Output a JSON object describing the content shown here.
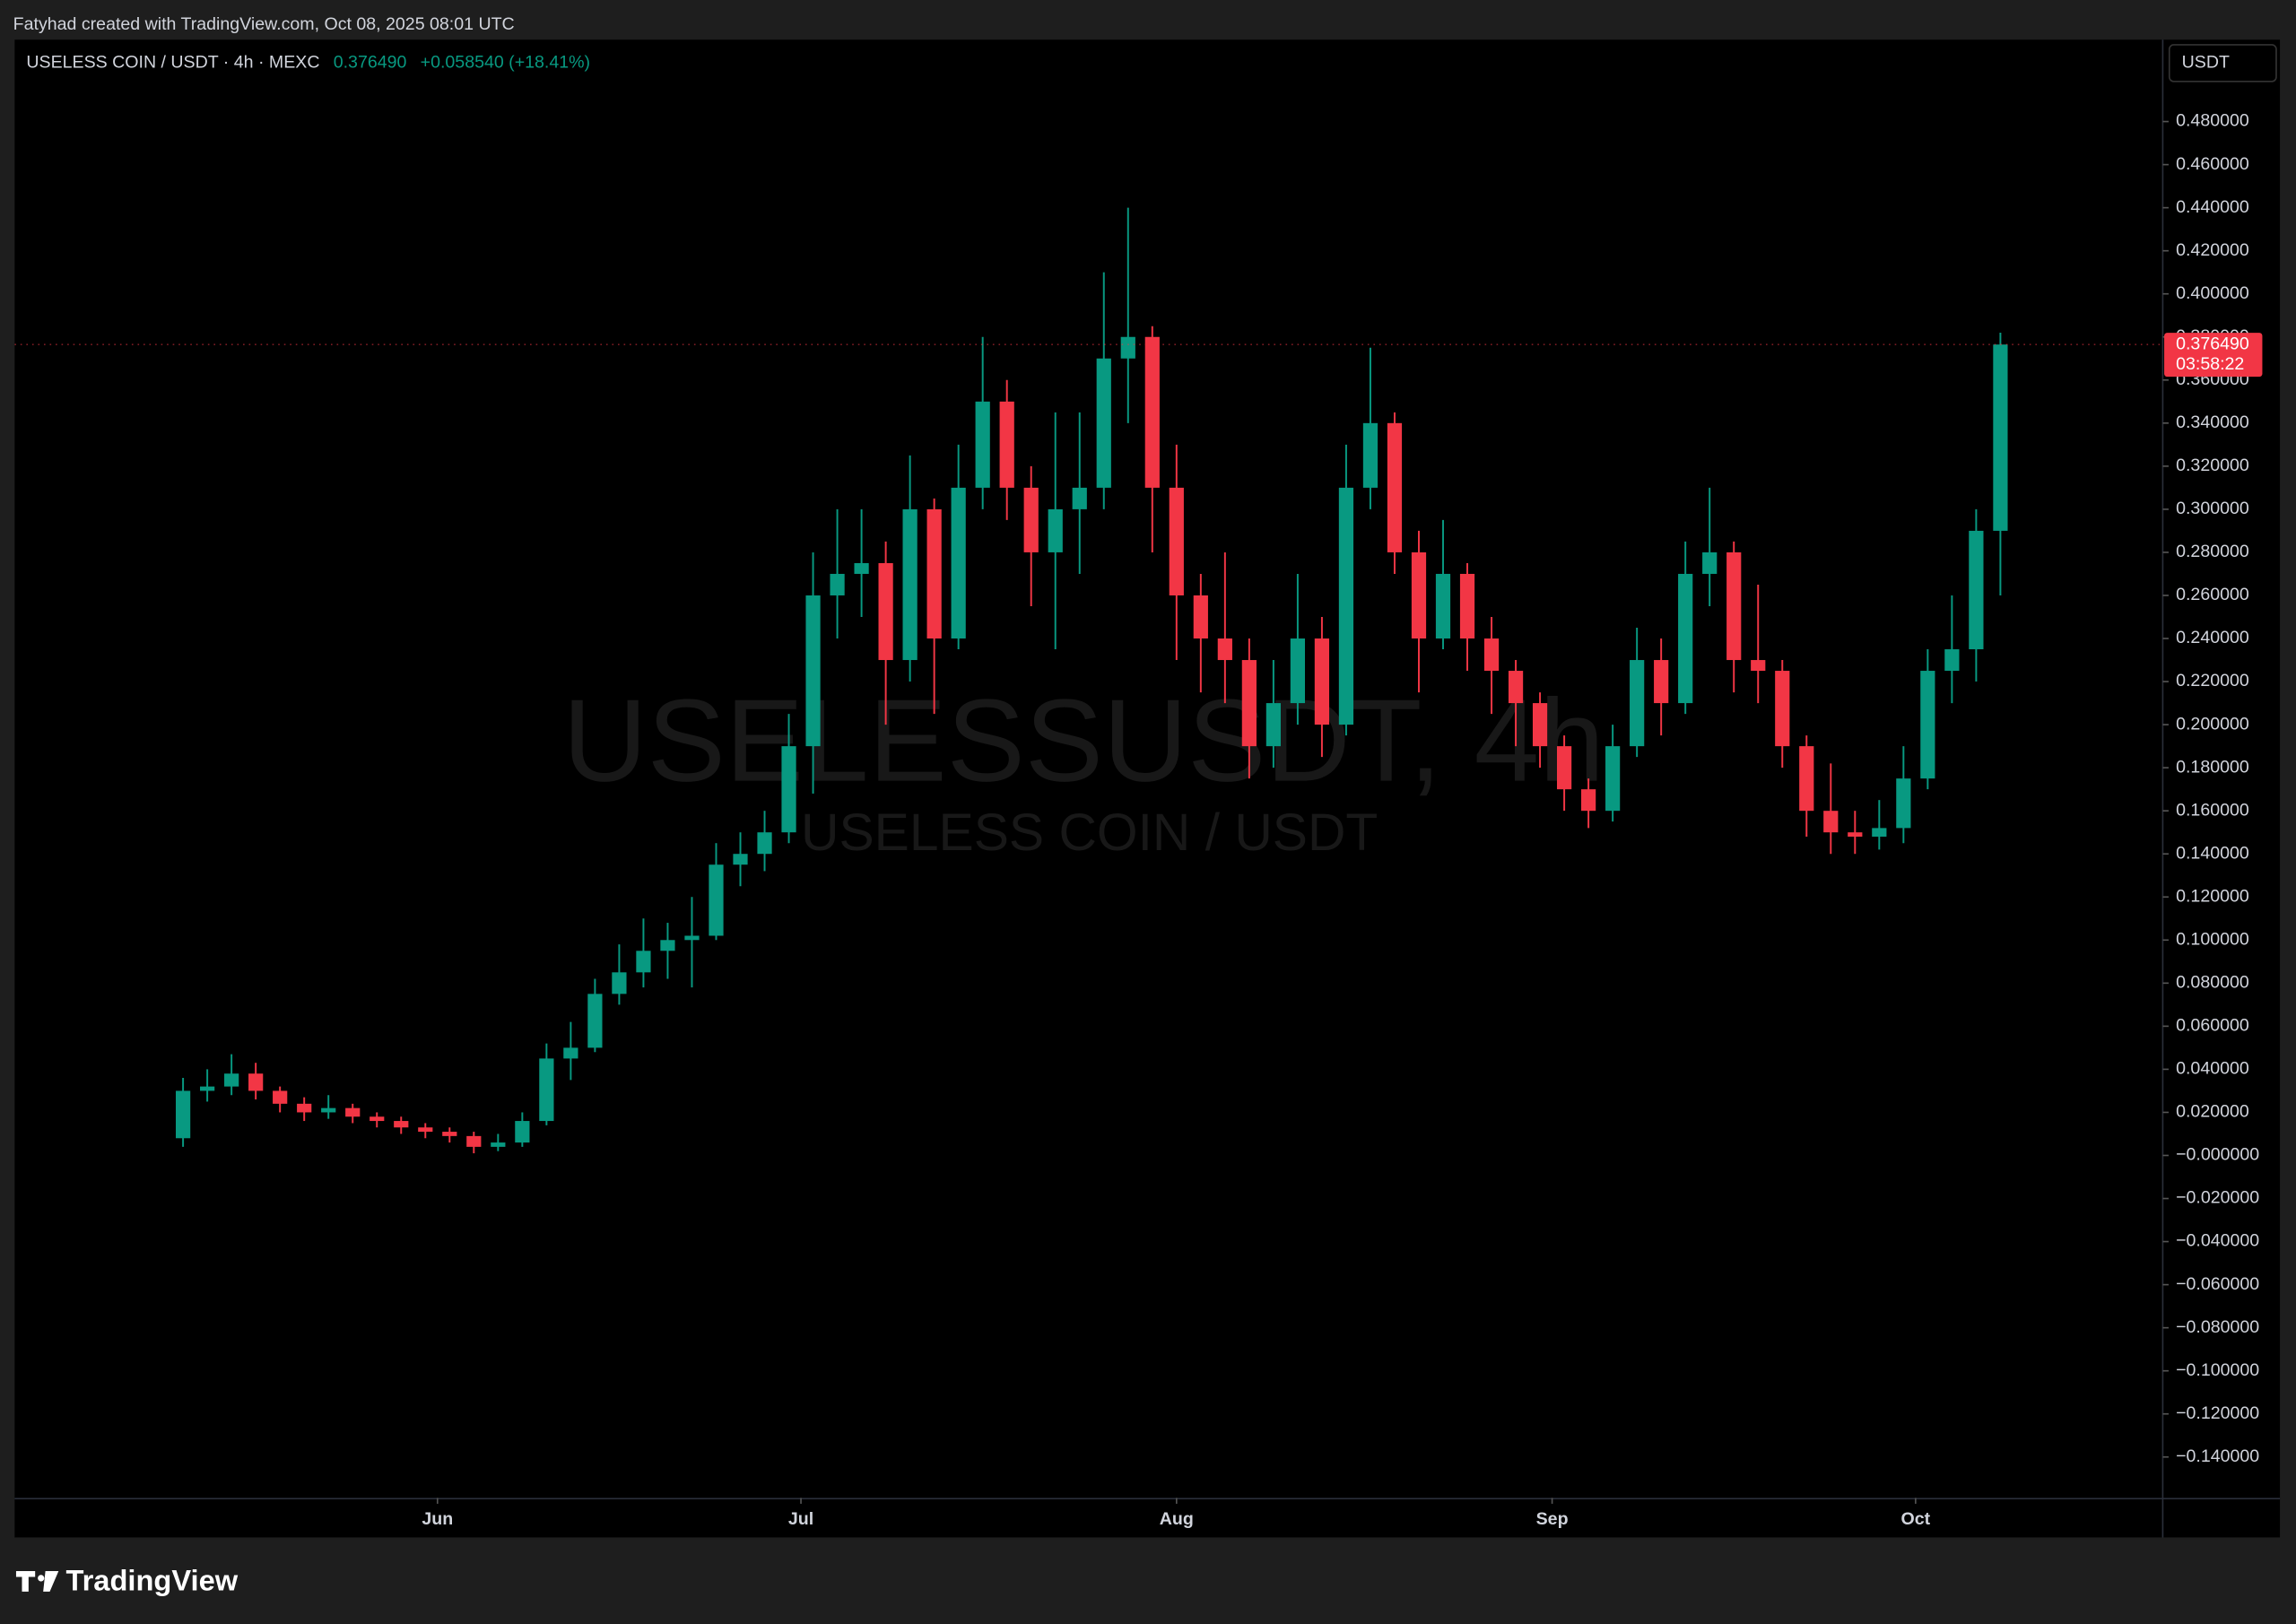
{
  "header": "Fatyhad created with TradingView.com, Oct 08, 2025 08:01 UTC",
  "logo": "TradingView",
  "chart_data": {
    "type": "candlestick",
    "symbol": "USELESS COIN / USDT · 4h · MEXC",
    "legend_price": "0.376490",
    "legend_change": "+0.058540 (+18.41%)",
    "watermark": "USELESSUSDT, 4h",
    "watermark_subtitle": "USELESS COIN / USDT",
    "currency": "USDT",
    "last_price": {
      "value": 0.37649,
      "label": "0.376490"
    },
    "countdown": "03:58:22",
    "up_color": "#089981",
    "down_color": "#f23645",
    "grid": false,
    "xlim": [
      -6.95,
      81.7
    ],
    "xticks": [
      {
        "value": 10.5,
        "label": "Jun"
      },
      {
        "value": 25.5,
        "label": "Jul"
      },
      {
        "value": 41,
        "label": "Aug"
      },
      {
        "value": 56.5,
        "label": "Sep"
      },
      {
        "value": 71.5,
        "label": "Oct"
      }
    ],
    "ylim": [
      -0.159,
      0.518
    ],
    "yticks": [
      {
        "value": 0.48,
        "label": "0.480000"
      },
      {
        "value": 0.46,
        "label": "0.460000"
      },
      {
        "value": 0.44,
        "label": "0.440000"
      },
      {
        "value": 0.42,
        "label": "0.420000"
      },
      {
        "value": 0.4,
        "label": "0.400000"
      },
      {
        "value": 0.38,
        "label": "0.380000"
      },
      {
        "value": 0.36,
        "label": "0.360000"
      },
      {
        "value": 0.34,
        "label": "0.340000"
      },
      {
        "value": 0.32,
        "label": "0.320000"
      },
      {
        "value": 0.3,
        "label": "0.300000"
      },
      {
        "value": 0.28,
        "label": "0.280000"
      },
      {
        "value": 0.26,
        "label": "0.260000"
      },
      {
        "value": 0.24,
        "label": "0.240000"
      },
      {
        "value": 0.22,
        "label": "0.220000"
      },
      {
        "value": 0.2,
        "label": "0.200000"
      },
      {
        "value": 0.18,
        "label": "0.180000"
      },
      {
        "value": 0.16,
        "label": "0.160000"
      },
      {
        "value": 0.14,
        "label": "0.140000"
      },
      {
        "value": 0.12,
        "label": "0.120000"
      },
      {
        "value": 0.1,
        "label": "0.100000"
      },
      {
        "value": 0.08,
        "label": "0.080000"
      },
      {
        "value": 0.06,
        "label": "0.060000"
      },
      {
        "value": 0.04,
        "label": "0.040000"
      },
      {
        "value": 0.02,
        "label": "0.020000"
      },
      {
        "value": 0,
        "label": "−0.000000"
      },
      {
        "value": -0.02,
        "label": "−0.020000"
      },
      {
        "value": -0.04,
        "label": "−0.040000"
      },
      {
        "value": -0.06,
        "label": "−0.060000"
      },
      {
        "value": -0.08,
        "label": "−0.080000"
      },
      {
        "value": -0.1,
        "label": "−0.100000"
      },
      {
        "value": -0.12,
        "label": "−0.120000"
      },
      {
        "value": -0.14,
        "label": "−0.140000"
      }
    ],
    "series": [
      {
        "name": "USELESSUSDT",
        "open": [
          0.008,
          0.03,
          0.032,
          0.038,
          0.03,
          0.024,
          0.02,
          0.022,
          0.018,
          0.016,
          0.013,
          0.011,
          0.009,
          0.004,
          0.006,
          0.016,
          0.045,
          0.05,
          0.075,
          0.085,
          0.095,
          0.1,
          0.102,
          0.135,
          0.14,
          0.15,
          0.19,
          0.26,
          0.27,
          0.275,
          0.23,
          0.3,
          0.24,
          0.31,
          0.35,
          0.31,
          0.28,
          0.3,
          0.31,
          0.37,
          0.38,
          0.31,
          0.26,
          0.24,
          0.23,
          0.19,
          0.21,
          0.24,
          0.2,
          0.31,
          0.34,
          0.28,
          0.24,
          0.27,
          0.24,
          0.225,
          0.21,
          0.19,
          0.17,
          0.16,
          0.19,
          0.23,
          0.21,
          0.27,
          0.28,
          0.23,
          0.225,
          0.19,
          0.16,
          0.15,
          0.148,
          0.152,
          0.175,
          0.225,
          0.235,
          0.29
        ],
        "high": [
          0.036,
          0.04,
          0.047,
          0.043,
          0.032,
          0.027,
          0.028,
          0.024,
          0.02,
          0.018,
          0.015,
          0.013,
          0.011,
          0.01,
          0.02,
          0.052,
          0.062,
          0.082,
          0.098,
          0.11,
          0.108,
          0.12,
          0.145,
          0.15,
          0.16,
          0.205,
          0.28,
          0.3,
          0.3,
          0.285,
          0.325,
          0.305,
          0.33,
          0.38,
          0.36,
          0.32,
          0.345,
          0.345,
          0.41,
          0.44,
          0.385,
          0.33,
          0.27,
          0.28,
          0.24,
          0.23,
          0.27,
          0.25,
          0.33,
          0.375,
          0.345,
          0.29,
          0.295,
          0.275,
          0.25,
          0.23,
          0.215,
          0.195,
          0.175,
          0.2,
          0.245,
          0.24,
          0.285,
          0.31,
          0.285,
          0.265,
          0.23,
          0.195,
          0.182,
          0.16,
          0.165,
          0.19,
          0.235,
          0.26,
          0.3,
          0.382
        ],
        "low": [
          0.004,
          0.025,
          0.028,
          0.026,
          0.02,
          0.016,
          0.017,
          0.015,
          0.013,
          0.01,
          0.008,
          0.006,
          0.001,
          0.002,
          0.004,
          0.014,
          0.035,
          0.048,
          0.07,
          0.078,
          0.082,
          0.078,
          0.1,
          0.125,
          0.132,
          0.145,
          0.168,
          0.24,
          0.25,
          0.2,
          0.22,
          0.205,
          0.235,
          0.3,
          0.295,
          0.255,
          0.235,
          0.27,
          0.3,
          0.34,
          0.28,
          0.23,
          0.215,
          0.21,
          0.175,
          0.18,
          0.2,
          0.185,
          0.195,
          0.3,
          0.27,
          0.215,
          0.235,
          0.225,
          0.205,
          0.19,
          0.18,
          0.16,
          0.152,
          0.155,
          0.185,
          0.195,
          0.205,
          0.255,
          0.215,
          0.21,
          0.18,
          0.148,
          0.14,
          0.14,
          0.142,
          0.145,
          0.17,
          0.21,
          0.22,
          0.26
        ],
        "close": [
          0.03,
          0.032,
          0.038,
          0.03,
          0.024,
          0.02,
          0.022,
          0.018,
          0.016,
          0.013,
          0.011,
          0.009,
          0.004,
          0.006,
          0.016,
          0.045,
          0.05,
          0.075,
          0.085,
          0.095,
          0.1,
          0.102,
          0.135,
          0.14,
          0.15,
          0.19,
          0.26,
          0.27,
          0.275,
          0.23,
          0.3,
          0.24,
          0.31,
          0.35,
          0.31,
          0.28,
          0.3,
          0.31,
          0.37,
          0.38,
          0.31,
          0.26,
          0.24,
          0.23,
          0.19,
          0.21,
          0.24,
          0.2,
          0.31,
          0.34,
          0.28,
          0.24,
          0.27,
          0.24,
          0.225,
          0.21,
          0.19,
          0.17,
          0.16,
          0.19,
          0.23,
          0.21,
          0.27,
          0.28,
          0.23,
          0.225,
          0.19,
          0.16,
          0.15,
          0.148,
          0.152,
          0.175,
          0.225,
          0.235,
          0.29,
          0.37649
        ]
      }
    ]
  }
}
